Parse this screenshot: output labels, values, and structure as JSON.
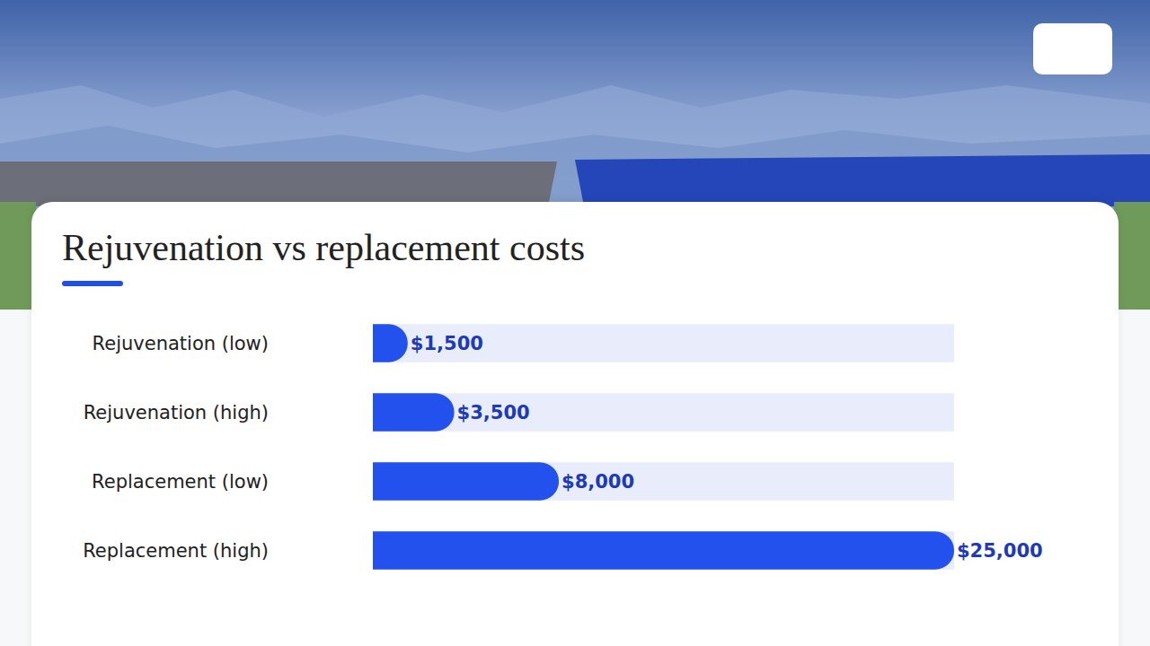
{
  "chart_data": {
    "type": "bar",
    "title": "Rejuvenation vs replacement costs",
    "orientation": "horizontal",
    "categories": [
      "Rejuvenation (low)",
      "Rejuvenation (high)",
      "Replacement (low)",
      "Replacement (high)"
    ],
    "values": [
      1500,
      3500,
      8000,
      25000
    ],
    "value_labels": [
      "$1,500",
      "$3,500",
      "$8,000",
      "$25,000"
    ],
    "color": "#2251ee",
    "xlim": [
      0,
      25000
    ],
    "data_labels": true,
    "tick_labels": "y",
    "grid": false
  }
}
